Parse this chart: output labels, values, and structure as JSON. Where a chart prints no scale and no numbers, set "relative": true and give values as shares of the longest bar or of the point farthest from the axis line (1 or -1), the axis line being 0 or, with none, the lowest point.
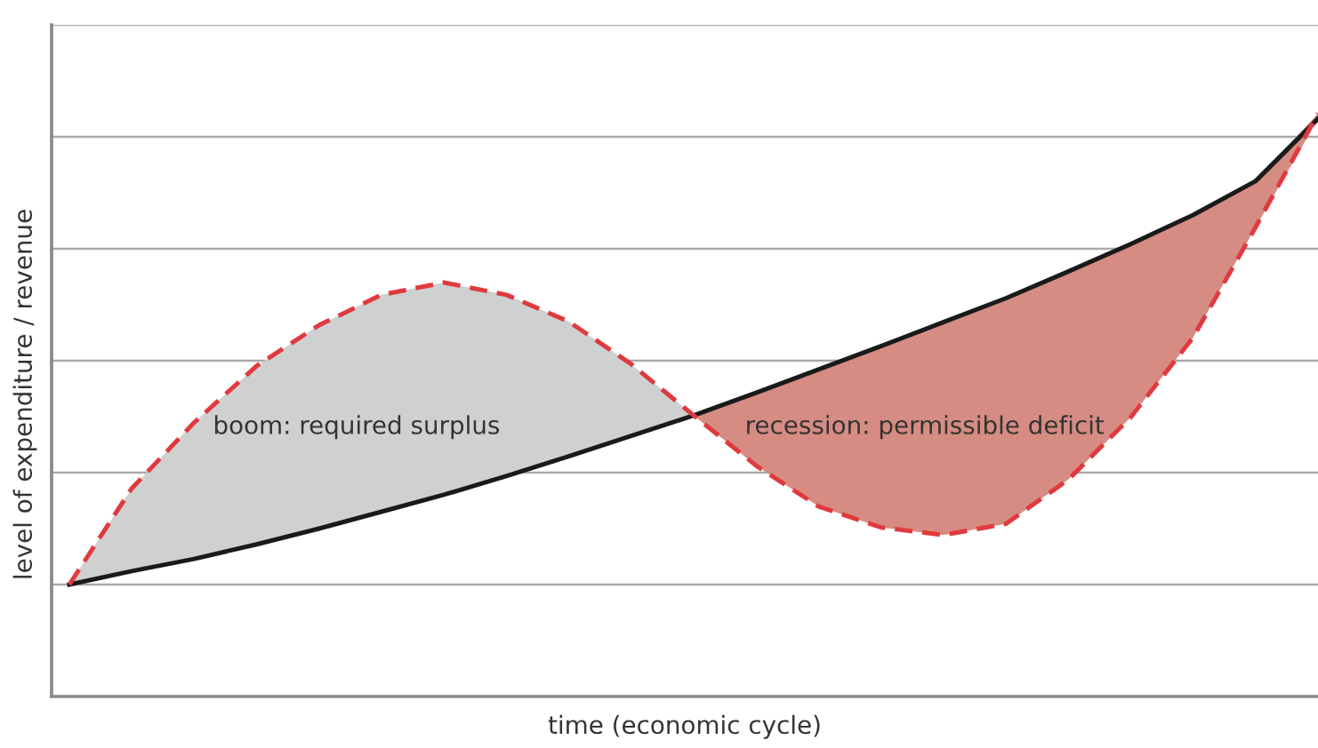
{
  "chart_data": {
    "type": "line",
    "relative": true,
    "xlabel": "time (economic cycle)",
    "ylabel": "level of expenditure / revenue",
    "categories": [
      null,
      null,
      null,
      null,
      null,
      null,
      null,
      null,
      null,
      null,
      null,
      null,
      null,
      null,
      null,
      null,
      null,
      null,
      null,
      null,
      null
    ],
    "series": [
      {
        "color": "#1a1a1a",
        "line_style": "solid",
        "values": [
          0.192,
          0.215,
          0.236,
          0.261,
          0.288,
          0.317,
          0.346,
          0.378,
          0.412,
          0.447,
          0.482,
          0.521,
          0.561,
          0.601,
          0.642,
          0.683,
          0.729,
          0.776,
          0.826,
          0.884,
          0.991
        ]
      },
      {
        "color": "#e03a3e",
        "line_style": "dashed",
        "values": [
          0.192,
          0.357,
          0.47,
          0.567,
          0.637,
          0.689,
          0.71,
          0.689,
          0.643,
          0.57,
          0.482,
          0.396,
          0.326,
          0.29,
          0.277,
          0.296,
          0.372,
          0.479,
          0.616,
          0.805,
          1.0
        ]
      },
      {
        "color": "#cfd1d0",
        "values": [
          null,
          null,
          null,
          null,
          null,
          null,
          null,
          null,
          null,
          null,
          null,
          null,
          null,
          null,
          null,
          null,
          null,
          null,
          null,
          null,
          null
        ],
        "lower": [
          0.192,
          0.215,
          0.236,
          0.261,
          0.288,
          0.317,
          0.346,
          0.378,
          0.412,
          0.447,
          0.482,
          null,
          null,
          null,
          null,
          null,
          null,
          null,
          null,
          null,
          null
        ],
        "upper": [
          0.192,
          0.357,
          0.47,
          0.567,
          0.637,
          0.689,
          0.71,
          0.689,
          0.643,
          0.57,
          0.482,
          null,
          null,
          null,
          null,
          null,
          null,
          null,
          null,
          null,
          null
        ]
      },
      {
        "color": "#d68c82",
        "values": [
          null,
          null,
          null,
          null,
          null,
          null,
          null,
          null,
          null,
          null,
          null,
          null,
          null,
          null,
          null,
          null,
          null,
          null,
          null,
          null,
          null
        ],
        "lower": [
          null,
          null,
          null,
          null,
          null,
          null,
          null,
          null,
          null,
          null,
          0.482,
          0.396,
          0.326,
          0.29,
          0.277,
          0.296,
          0.372,
          0.479,
          0.616,
          0.805,
          0.991
        ],
        "upper": [
          null,
          null,
          null,
          null,
          null,
          null,
          null,
          null,
          null,
          null,
          0.482,
          0.521,
          0.561,
          0.601,
          0.642,
          0.683,
          0.729,
          0.776,
          0.826,
          0.884,
          1.0
        ]
      }
    ],
    "ref_lines": [
      {
        "axis": "y",
        "value": 0.192,
        "color": "#aaaaaa"
      },
      {
        "axis": "y",
        "value": 0.384,
        "color": "#aaaaaa"
      },
      {
        "axis": "y",
        "value": 0.576,
        "color": "#aaaaaa"
      },
      {
        "axis": "y",
        "value": 0.768,
        "color": "#aaaaaa"
      },
      {
        "axis": "y",
        "value": 0.96,
        "color": "#aaaaaa"
      },
      {
        "axis": "y",
        "value": 1.152,
        "color": "#aaaaaa"
      }
    ],
    "annotations": [
      "boom: required surplus",
      "recession: permissible deficit"
    ]
  }
}
